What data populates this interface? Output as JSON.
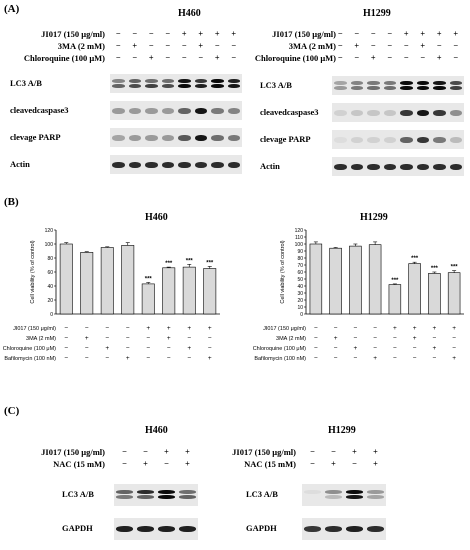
{
  "panels": {
    "A": "(A)",
    "B": "(B)",
    "C": "(C)"
  },
  "panel_a": {
    "left": {
      "cell_line": "H460",
      "treatments": [
        {
          "label": "JI017 (150 μg/ml)",
          "signs": [
            "−",
            "−",
            "−",
            "−",
            "+",
            "+",
            "+",
            "+"
          ]
        },
        {
          "label": "3MA (2 mM)",
          "signs": [
            "−",
            "+",
            "−",
            "−",
            "−",
            "+",
            "−",
            "−"
          ]
        },
        {
          "label": "Chloroquine (100 μM)",
          "signs": [
            "−",
            "−",
            "+",
            "−",
            "−",
            "−",
            "+",
            "−"
          ]
        }
      ],
      "blots": [
        "LC3 A/B",
        "cleavedcaspase3",
        "clevage PARP",
        "Actin"
      ]
    },
    "right": {
      "cell_line": "H1299",
      "treatments": [
        {
          "label": "JI017 (150 μg/ml)",
          "signs": [
            "−",
            "−",
            "−",
            "−",
            "+",
            "+",
            "+",
            "+"
          ]
        },
        {
          "label": "3MA (2 mM)",
          "signs": [
            "−",
            "+",
            "−",
            "−",
            "−",
            "+",
            "−",
            "−"
          ]
        },
        {
          "label": "Chloroquine (100 μM)",
          "signs": [
            "−",
            "−",
            "+",
            "−",
            "−",
            "−",
            "+",
            "−"
          ]
        }
      ],
      "blots": [
        "LC3 A/B",
        "cleavedcaspase3",
        "clevage PARP",
        "Actin"
      ]
    }
  },
  "chart_data": [
    {
      "type": "bar",
      "title": "H460",
      "ylabel": "Cell viability (% of control)",
      "ylim": [
        0,
        120
      ],
      "yticks": [
        0,
        20,
        40,
        60,
        80,
        100,
        120
      ],
      "values": [
        100,
        88,
        95,
        98,
        43,
        66,
        67,
        65
      ],
      "errors": [
        2,
        1,
        1,
        4,
        2,
        1,
        4,
        3
      ],
      "annotations": [
        "",
        "",
        "",
        "",
        "***",
        "***",
        "***",
        "***"
      ],
      "conditions": [
        {
          "label": "JI017 (150 μg/ml)",
          "signs": [
            "−",
            "−",
            "−",
            "−",
            "+",
            "+",
            "+",
            "+"
          ]
        },
        {
          "label": "3MA (2 mM)",
          "signs": [
            "−",
            "+",
            "−",
            "−",
            "−",
            "+",
            "−",
            "−"
          ]
        },
        {
          "label": "Chloroquine (100 μM)",
          "signs": [
            "−",
            "−",
            "+",
            "−",
            "−",
            "−",
            "+",
            "−"
          ]
        },
        {
          "label": "Bafilomycin (100 nM)",
          "signs": [
            "−",
            "−",
            "−",
            "+",
            "−",
            "−",
            "−",
            "+"
          ]
        }
      ]
    },
    {
      "type": "bar",
      "title": "H1299",
      "ylabel": "Cell viability (% of control)",
      "ylim": [
        0,
        120
      ],
      "yticks": [
        0,
        10,
        20,
        30,
        40,
        50,
        60,
        70,
        80,
        90,
        100,
        110,
        120
      ],
      "values": [
        100,
        94,
        97,
        99,
        42,
        72,
        58,
        59
      ],
      "errors": [
        3,
        1,
        3,
        4,
        1,
        2,
        2,
        3
      ],
      "annotations": [
        "",
        "",
        "",
        "",
        "***",
        "***",
        "***",
        "***"
      ],
      "conditions": [
        {
          "label": "JI017 (150 μg/ml)",
          "signs": [
            "−",
            "−",
            "−",
            "−",
            "+",
            "+",
            "+",
            "+"
          ]
        },
        {
          "label": "3MA (2 mM)",
          "signs": [
            "−",
            "+",
            "−",
            "−",
            "−",
            "+",
            "−",
            "−"
          ]
        },
        {
          "label": "Chloroquine (100 μM)",
          "signs": [
            "−",
            "−",
            "+",
            "−",
            "−",
            "−",
            "+",
            "−"
          ]
        },
        {
          "label": "Bafilomycin (100 nM)",
          "signs": [
            "−",
            "−",
            "−",
            "+",
            "−",
            "−",
            "−",
            "+"
          ]
        }
      ]
    }
  ],
  "panel_c": {
    "left": {
      "cell_line": "H460",
      "treatments": [
        {
          "label": "JI017 (150 μg/ml)",
          "signs": [
            "−",
            "−",
            "+",
            "+"
          ]
        },
        {
          "label": "NAC (15 mM)",
          "signs": [
            "−",
            "+",
            "−",
            "+"
          ]
        }
      ],
      "blots": [
        "LC3 A/B",
        "GAPDH"
      ]
    },
    "right": {
      "cell_line": "H1299",
      "treatments": [
        {
          "label": "JI017 (150 μg/ml)",
          "signs": [
            "−",
            "−",
            "+",
            "+"
          ]
        },
        {
          "label": "NAC (15 mM)",
          "signs": [
            "−",
            "+",
            "−",
            "+"
          ]
        }
      ],
      "blots": [
        "LC3 A/B",
        "GAPDH"
      ]
    }
  },
  "colors": {
    "bar_fill": "#d9d9d9",
    "band": "#111111",
    "blot_bg": "#e6e6e6"
  }
}
